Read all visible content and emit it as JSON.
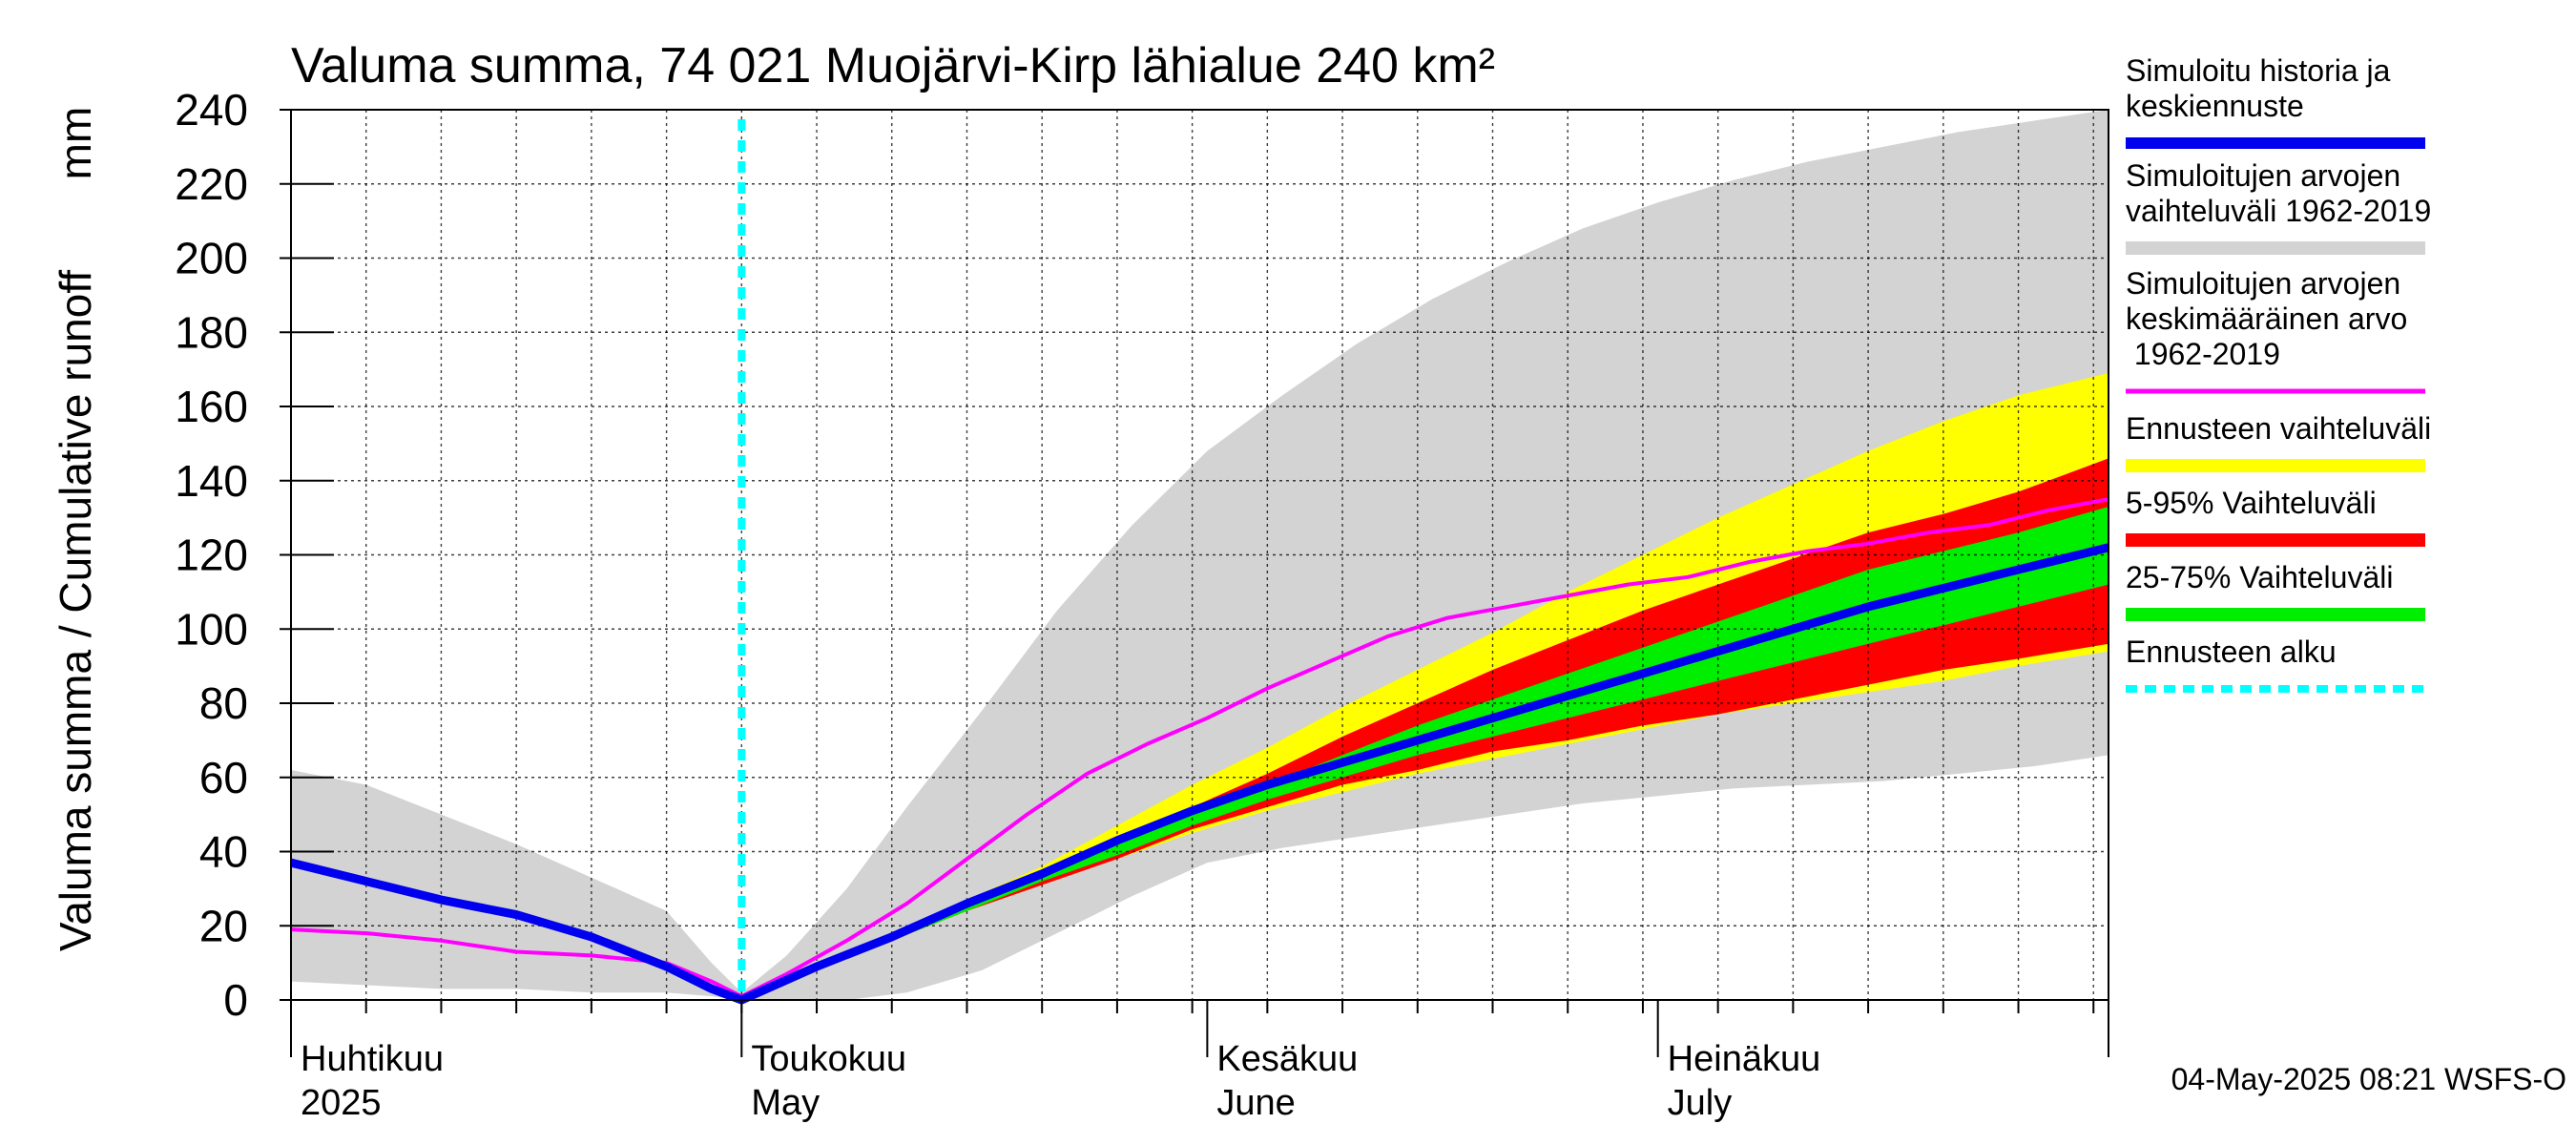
{
  "chart_data": {
    "type": "area",
    "title": "Valuma summa, 74 021 Muojärvi-Kirp lähialue 240 km²",
    "ylabel_left": "Valuma summa / Cumulative runoff",
    "ylabel_unit": "mm",
    "ylim": [
      0,
      240
    ],
    "y_ticks": [
      0,
      20,
      40,
      60,
      80,
      100,
      120,
      140,
      160,
      180,
      200,
      220,
      240
    ],
    "x_unit": "day index, 0 = 1 April 2025, 121 = 31 July 2025",
    "xlim": [
      0,
      121
    ],
    "grid": true,
    "month_labels": [
      {
        "day": 0,
        "fi": "Huhtikuu",
        "en": "2025"
      },
      {
        "day": 30,
        "fi": "Toukokuu",
        "en": "May"
      },
      {
        "day": 61,
        "fi": "Kesäkuu",
        "en": "June"
      },
      {
        "day": 91,
        "fi": "Heinäkuu",
        "en": "July"
      }
    ],
    "forecast_start_day": 30,
    "series": [
      {
        "name": "Simuloitujen arvojen vaihteluväli 1962-2019",
        "kind": "band",
        "color": "#d3d3d3",
        "x": [
          0,
          5,
          10,
          15,
          20,
          25,
          28,
          30,
          33,
          37,
          41,
          46,
          51,
          56,
          61,
          66,
          71,
          76,
          81,
          86,
          91,
          96,
          101,
          106,
          111,
          116,
          121
        ],
        "upper": [
          62,
          58,
          50,
          42,
          33,
          24,
          10,
          2,
          12,
          30,
          52,
          78,
          105,
          128,
          148,
          163,
          177,
          189,
          199,
          208,
          215,
          221,
          226,
          230,
          234,
          237,
          240
        ],
        "lower": [
          5,
          4,
          3,
          3,
          2,
          2,
          1,
          0,
          0,
          0,
          2,
          8,
          18,
          28,
          37,
          41,
          44,
          47,
          50,
          53,
          55,
          57,
          58,
          59,
          61,
          63,
          66
        ]
      },
      {
        "name": "Ennusteen vaihteluväli",
        "kind": "band",
        "color": "#ffff00",
        "x": [
          30,
          35,
          40,
          45,
          50,
          55,
          60,
          65,
          70,
          75,
          80,
          85,
          90,
          95,
          100,
          105,
          110,
          115,
          121
        ],
        "upper": [
          0,
          9,
          18,
          27,
          36,
          47,
          58,
          68,
          79,
          89,
          99,
          110,
          120,
          130,
          139,
          148,
          156,
          163,
          169
        ],
        "lower": [
          0,
          8,
          16,
          24,
          31,
          38,
          45,
          51,
          56,
          61,
          65,
          69,
          73,
          77,
          80,
          83,
          86,
          90,
          94
        ]
      },
      {
        "name": "5-95% Vaihteluväli",
        "kind": "band",
        "color": "#ff0000",
        "x": [
          30,
          35,
          40,
          45,
          50,
          55,
          60,
          65,
          70,
          75,
          80,
          85,
          90,
          95,
          100,
          105,
          110,
          115,
          121
        ],
        "upper": [
          0,
          9,
          17,
          25,
          34,
          43,
          52,
          61,
          71,
          80,
          89,
          97,
          105,
          112,
          119,
          126,
          131,
          137,
          146
        ],
        "lower": [
          0,
          8,
          16,
          24,
          31,
          38,
          46,
          52,
          58,
          62,
          67,
          70,
          74,
          77,
          81,
          85,
          89,
          92,
          96
        ]
      },
      {
        "name": "25-75% Vaihteluväli",
        "kind": "band",
        "color": "#00ee00",
        "x": [
          30,
          35,
          40,
          45,
          50,
          55,
          60,
          65,
          70,
          75,
          80,
          85,
          90,
          95,
          100,
          105,
          110,
          115,
          121
        ],
        "upper": [
          0,
          9,
          17,
          25,
          33,
          42,
          50,
          58,
          66,
          74,
          81,
          88,
          95,
          102,
          109,
          116,
          121,
          126,
          133
        ],
        "lower": [
          0,
          8,
          16,
          24,
          32,
          39,
          47,
          54,
          60,
          66,
          71,
          76,
          81,
          86,
          91,
          96,
          101,
          106,
          112
        ]
      },
      {
        "name": "Simuloitujen arvojen keskimääräinen arvo 1962-2019",
        "kind": "line",
        "color": "#ff00ff",
        "x": [
          0,
          5,
          10,
          15,
          20,
          25,
          28,
          30,
          33,
          37,
          41,
          45,
          49,
          53,
          57,
          61,
          65,
          69,
          73,
          77,
          81,
          85,
          89,
          93,
          97,
          101,
          105,
          109,
          113,
          117,
          121
        ],
        "values": [
          19,
          18,
          16,
          13,
          12,
          10,
          5,
          1,
          7,
          16,
          26,
          38,
          50,
          61,
          69,
          76,
          84,
          91,
          98,
          103,
          106,
          109,
          112,
          114,
          118,
          121,
          123,
          126,
          128,
          132,
          135
        ]
      },
      {
        "name": "Simuloitu historia ja keskiennuste",
        "kind": "line",
        "color": "#0000ee",
        "x": [
          0,
          5,
          10,
          15,
          20,
          25,
          28,
          30,
          35,
          40,
          45,
          50,
          55,
          60,
          65,
          70,
          75,
          80,
          85,
          90,
          95,
          100,
          105,
          110,
          115,
          121
        ],
        "values": [
          37,
          32,
          27,
          23,
          17,
          9,
          3,
          0,
          9,
          17,
          26,
          34,
          43,
          51,
          58,
          64,
          70,
          76,
          82,
          88,
          94,
          100,
          106,
          111,
          116,
          122
        ]
      }
    ],
    "legend": [
      {
        "label": "Simuloitu historia ja keskiennuste",
        "color": "#0000ee",
        "style": "solid"
      },
      {
        "label": "Simuloitujen arvojen vaihteluväli 1962-2019",
        "color": "#d3d3d3",
        "style": "solid"
      },
      {
        "label": "Simuloitujen arvojen keskimääräinen arvo 1962-2019",
        "color": "#ff00ff",
        "style": "solid"
      },
      {
        "label": "Ennusteen vaihteluväli",
        "color": "#ffff00",
        "style": "solid"
      },
      {
        "label": "5-95% Vaihteluväli",
        "color": "#ff0000",
        "style": "solid"
      },
      {
        "label": "25-75% Vaihteluväli",
        "color": "#00ee00",
        "style": "solid"
      },
      {
        "label": "Ennusteen alku",
        "color": "#00ffff",
        "style": "dashed"
      }
    ],
    "legend_position": "right",
    "footer": "04-May-2025 08:21 WSFS-O"
  }
}
